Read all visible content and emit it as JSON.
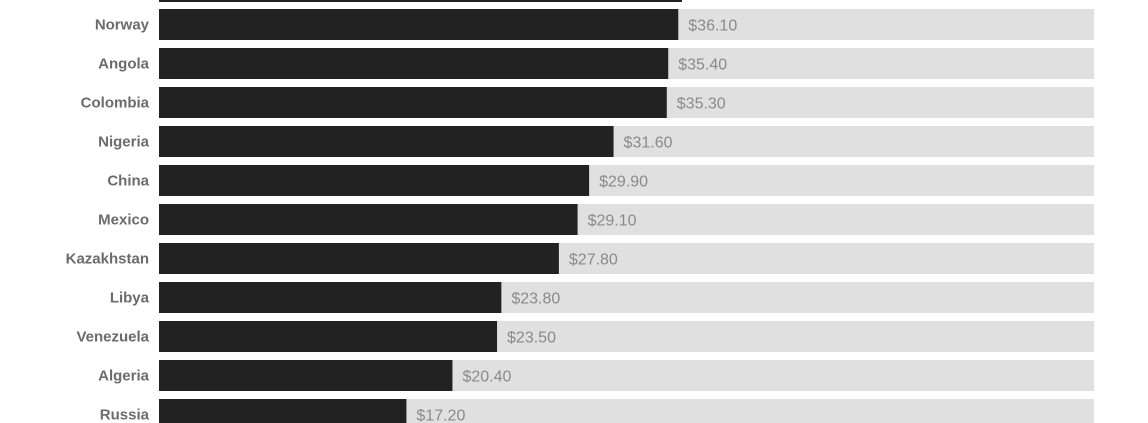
{
  "chart_data": {
    "type": "bar",
    "orientation": "horizontal",
    "categories": [
      "Norway",
      "Angola",
      "Colombia",
      "Nigeria",
      "China",
      "Mexico",
      "Kazakhstan",
      "Libya",
      "Venezuela",
      "Algeria",
      "Russia"
    ],
    "values": [
      36.1,
      35.4,
      35.3,
      31.6,
      29.9,
      29.1,
      27.8,
      23.8,
      23.5,
      20.4,
      17.2
    ],
    "value_labels": [
      "$36.10",
      "$35.40",
      "$35.30",
      "$31.60",
      "$29.90",
      "$29.10",
      "$27.80",
      "$23.80",
      "$23.50",
      "$20.40",
      "$17.20"
    ],
    "xlim": [
      0,
      65
    ],
    "grid": false,
    "legend": "none",
    "colors": {
      "bar": "#222222",
      "track": "#e0e0e0",
      "category_label": "#6b6b6b",
      "value_label": "#8a8a8a"
    }
  }
}
